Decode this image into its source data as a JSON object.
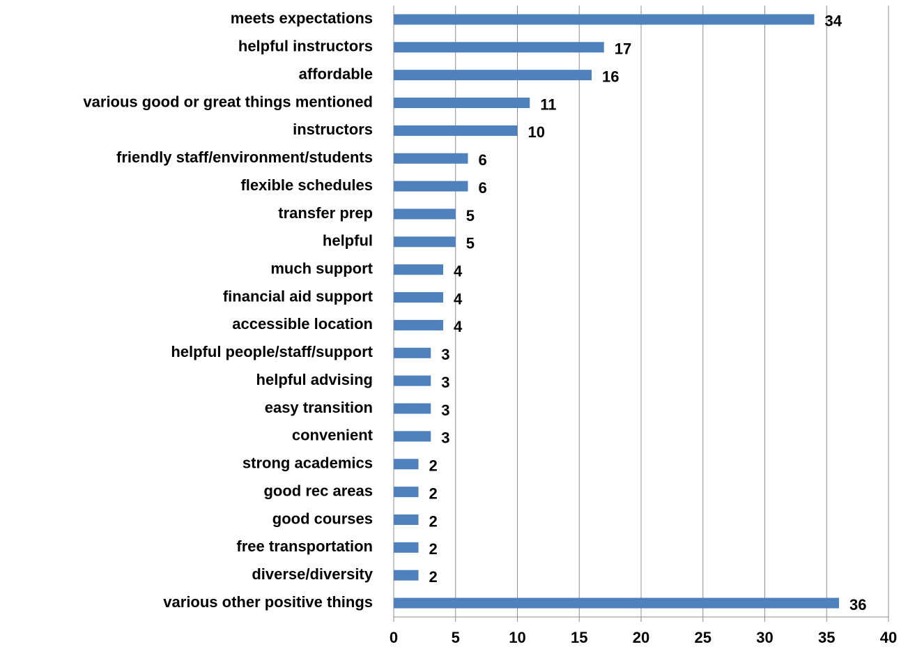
{
  "chart_data": {
    "type": "barh",
    "categories": [
      "meets expectations",
      "helpful instructors",
      "affordable",
      "various good or great things mentioned",
      "instructors",
      "friendly staff/environment/students",
      "flexible schedules",
      "transfer prep",
      "helpful",
      "much support",
      "financial aid support",
      "accessible location",
      "helpful people/staff/support",
      "helpful advising",
      "easy transition",
      "convenient",
      "strong academics",
      "good rec areas",
      "good courses",
      "free transportation",
      "diverse/diversity",
      "various other positive things"
    ],
    "values": [
      34,
      17,
      16,
      11,
      10,
      6,
      6,
      5,
      5,
      4,
      4,
      4,
      3,
      3,
      3,
      3,
      2,
      2,
      2,
      2,
      2,
      36
    ],
    "color": "#4f81bd",
    "xlim": [
      0,
      40
    ],
    "xticks": [
      0,
      5,
      10,
      15,
      20,
      25,
      30,
      35,
      40
    ],
    "grid": true
  }
}
